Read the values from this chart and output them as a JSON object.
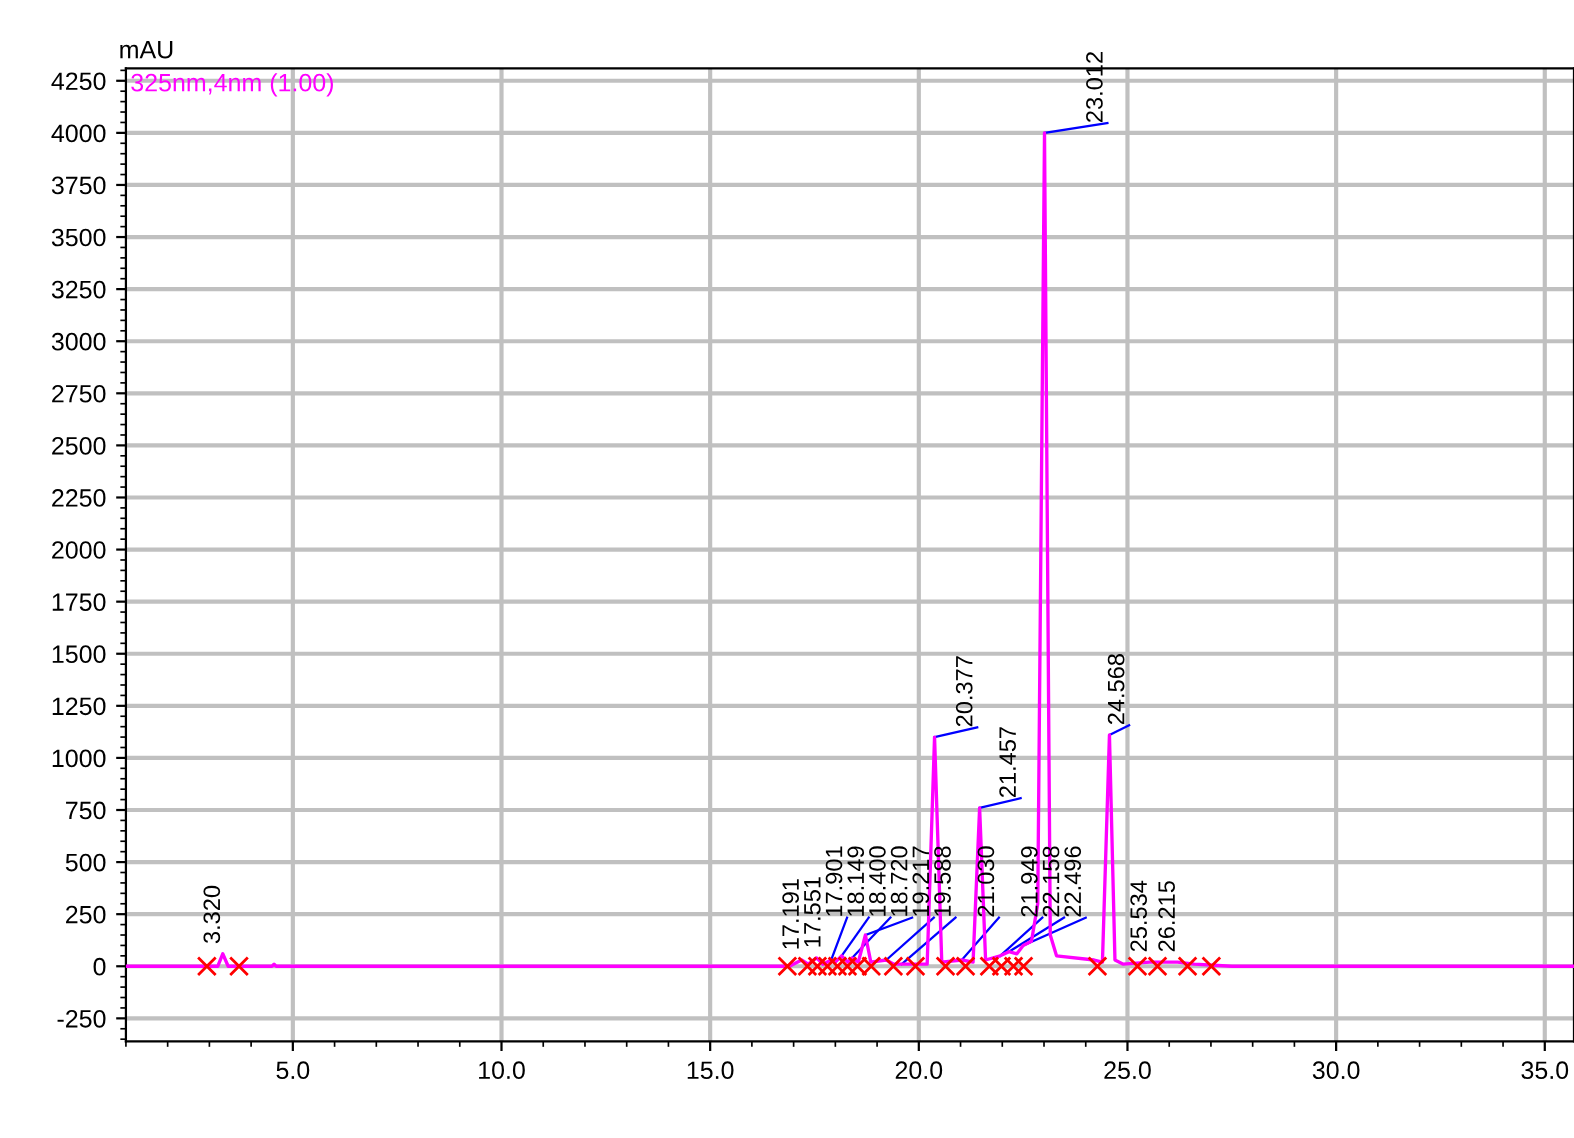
{
  "chart_data": {
    "type": "line",
    "ylabel": "mAU",
    "xlim": [
      1.0,
      35.7
    ],
    "ylim": [
      -360,
      4310
    ],
    "xticks": [
      {
        "value": 5,
        "label": "5.0"
      },
      {
        "value": 10,
        "label": "10.0"
      },
      {
        "value": 15,
        "label": "15.0"
      },
      {
        "value": 20,
        "label": "20.0"
      },
      {
        "value": 25,
        "label": "25.0"
      },
      {
        "value": 30,
        "label": "30.0"
      },
      {
        "value": 35,
        "label": "35.0"
      }
    ],
    "yticks": [
      -250,
      0,
      250,
      500,
      750,
      1000,
      1250,
      1500,
      1750,
      2000,
      2250,
      2500,
      2750,
      3000,
      3250,
      3500,
      3750,
      4000,
      4250
    ],
    "grid": true,
    "legend": false,
    "line_style": "solid",
    "series": [
      {
        "name": "325nm,4nm (1.00)",
        "color": "#ff00ff",
        "marker": "none",
        "x": [
          1.0,
          3.0,
          3.2,
          3.32,
          3.45,
          4.5,
          4.55,
          4.6,
          16.9,
          17.19,
          17.35,
          17.55,
          17.7,
          17.9,
          18.0,
          18.15,
          18.3,
          18.4,
          18.55,
          18.72,
          18.85,
          19.22,
          19.4,
          19.59,
          20.2,
          20.377,
          20.55,
          21.03,
          21.3,
          21.457,
          21.6,
          21.95,
          22.16,
          22.35,
          22.5,
          22.7,
          22.85,
          23.012,
          23.15,
          23.3,
          24.2,
          24.4,
          24.568,
          24.7,
          24.9,
          25.53,
          26.2,
          26.6,
          27.5,
          35.7
        ],
        "values": [
          0,
          0,
          0,
          60,
          0,
          0,
          10,
          0,
          0,
          30,
          10,
          40,
          10,
          30,
          20,
          50,
          20,
          40,
          20,
          150,
          20,
          30,
          10,
          10,
          10,
          1100,
          20,
          30,
          20,
          760,
          30,
          50,
          70,
          60,
          100,
          120,
          300,
          4000,
          150,
          50,
          30,
          20,
          1110,
          30,
          10,
          20,
          20,
          10,
          0,
          0
        ]
      },
      {
        "type": "scatter",
        "color": "#ff0000",
        "marker": "cross",
        "x": [
          2.94,
          3.71,
          16.85,
          17.33,
          17.57,
          17.81,
          18.05,
          18.29,
          18.53,
          18.86,
          19.39,
          19.92,
          20.64,
          21.12,
          21.69,
          21.98,
          22.27,
          22.51,
          24.28,
          25.24,
          25.72,
          26.44,
          27.01
        ],
        "values": [
          0,
          0,
          0,
          0,
          0,
          0,
          0,
          0,
          0,
          0,
          0,
          0,
          0,
          0,
          0,
          0,
          0,
          0,
          0,
          0,
          0,
          0,
          0
        ]
      }
    ],
    "annotations": [
      {
        "text": "3.320",
        "x": 3.32,
        "y": 60
      },
      {
        "text": "17.191",
        "x": 17.19,
        "y": 30
      },
      {
        "text": "17.551",
        "x": 17.55,
        "y": 40
      },
      {
        "text": "17.901",
        "x": 17.9,
        "y": 30
      },
      {
        "text": "18.149",
        "x": 18.15,
        "y": 50
      },
      {
        "text": "18.400",
        "x": 18.4,
        "y": 40
      },
      {
        "text": "18.720",
        "x": 18.72,
        "y": 150
      },
      {
        "text": "19.217",
        "x": 19.22,
        "y": 30
      },
      {
        "text": "19.588",
        "x": 19.59,
        "y": 10
      },
      {
        "text": "20.377",
        "x": 20.377,
        "y": 1100
      },
      {
        "text": "21.030",
        "x": 21.03,
        "y": 30
      },
      {
        "text": "21.457",
        "x": 21.457,
        "y": 760
      },
      {
        "text": "21.949",
        "x": 21.95,
        "y": 50
      },
      {
        "text": "22.158",
        "x": 22.16,
        "y": 70
      },
      {
        "text": "22.496",
        "x": 22.5,
        "y": 100
      },
      {
        "text": "23.012",
        "x": 23.012,
        "y": 4000
      },
      {
        "text": "24.568",
        "x": 24.568,
        "y": 1110
      },
      {
        "text": "25.534",
        "x": 25.53,
        "y": 20
      },
      {
        "text": "26.215",
        "x": 26.2,
        "y": 20
      }
    ]
  }
}
